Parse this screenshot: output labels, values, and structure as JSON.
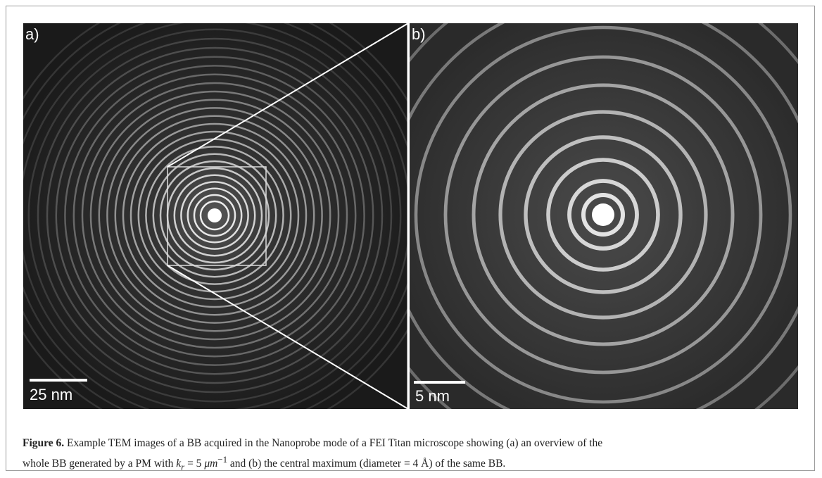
{
  "figure": {
    "panels": [
      {
        "label": "a)",
        "scale_bar": "25 nm"
      },
      {
        "label": "b)",
        "scale_bar": "5 nm"
      }
    ],
    "caption": {
      "label": "Figure 6.",
      "line_1": "Example TEM images of a BB acquired in the Nanoprobe mode of a FEI Titan microscope showing (a) an overview of the",
      "line_2_before": "whole BB generated by a PM with",
      "math_var": "k",
      "math_sub": "r",
      "math_eq": "= 5",
      "math_unit": "μm",
      "math_sup": "−1",
      "line_2_after": "and (b) the central maximum (diameter = 4 Å) of the same BB."
    }
  }
}
